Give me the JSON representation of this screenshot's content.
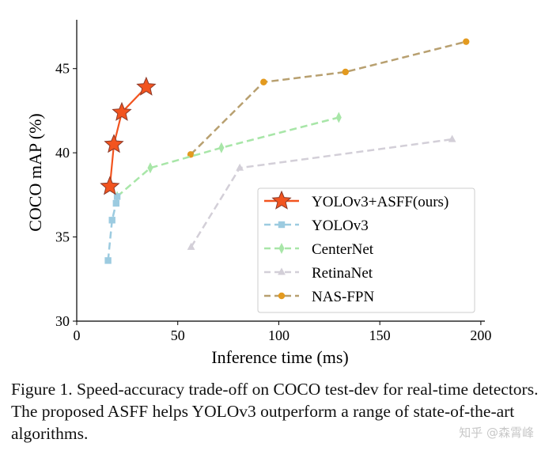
{
  "chart_data": {
    "type": "line",
    "title": "",
    "xlabel": "Inference time (ms)",
    "ylabel": "COCO mAP (%)",
    "xlim": [
      0,
      202
    ],
    "ylim": [
      30,
      47.9
    ],
    "xticks": [
      0,
      50,
      100,
      150,
      200
    ],
    "yticks": [
      30,
      35,
      40,
      45
    ],
    "grid": false,
    "legend_position": "lower-right",
    "series": [
      {
        "name": "YOLOv3+ASFF(ours)",
        "color": "#f2541f",
        "edge": "#8b3a2a",
        "marker": "star",
        "dashed": false,
        "x": [
          16.4,
          18.4,
          22.3,
          34.4
        ],
        "y": [
          38.0,
          40.5,
          42.4,
          43.9
        ]
      },
      {
        "name": "YOLOv3",
        "color": "#9ccbe0",
        "marker": "square",
        "dashed": true,
        "x": [
          15.5,
          17.5,
          19.5,
          20.0
        ],
        "y": [
          33.6,
          36.0,
          37.0,
          37.4
        ]
      },
      {
        "name": "CenterNet",
        "color": "#a8e6a8",
        "marker": "diamond",
        "dashed": true,
        "x": [
          20.0,
          36.4,
          71.6,
          129.7
        ],
        "y": [
          37.4,
          39.1,
          40.3,
          42.1
        ]
      },
      {
        "name": "RetinaNet",
        "color": "#d3cfd8",
        "marker": "triangle",
        "dashed": true,
        "x": [
          56.6,
          80.7,
          185.8
        ],
        "y": [
          34.4,
          39.1,
          40.8
        ]
      },
      {
        "name": "NAS-FPN",
        "color": "#e39a1f",
        "line": "#b8a070",
        "marker": "circle",
        "dashed": true,
        "x": [
          56.4,
          92.5,
          133.0,
          192.7
        ],
        "y": [
          39.9,
          44.2,
          44.8,
          46.6
        ]
      }
    ]
  },
  "caption": "Figure 1. Speed-accuracy trade-off on COCO test-dev for real-time detectors. The proposed ASFF helps YOLOv3 outperform a range of state-of-the-art algorithms.",
  "watermark": "知乎 @森霄峰"
}
